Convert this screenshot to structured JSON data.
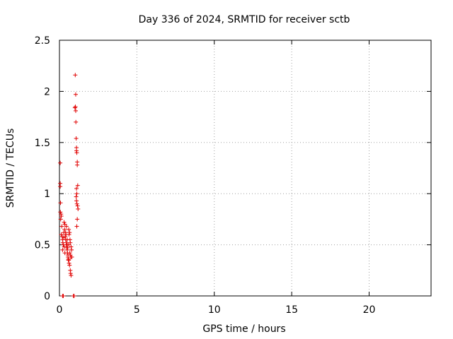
{
  "chart_data": {
    "type": "scatter",
    "title": "Day 336 of 2024, SRMTID for receiver sctb",
    "xlabel": "GPS time / hours",
    "ylabel": "SRMTID / TECUs",
    "xlim": [
      0,
      24
    ],
    "ylim": [
      0,
      2.5
    ],
    "x_ticks": [
      0,
      5,
      10,
      15,
      20
    ],
    "x_tick_labels": [
      "0",
      "5",
      "10",
      "15",
      "20"
    ],
    "y_ticks": [
      0,
      0.5,
      1,
      1.5,
      2,
      2.5
    ],
    "y_tick_labels": [
      "0",
      "0.5",
      "1",
      "1.5",
      "2",
      "2.5"
    ],
    "grid": true,
    "marker": "+",
    "series": [
      {
        "name": "SRMTID",
        "color": "#e00000",
        "x": [
          0.05,
          0.05,
          0.05,
          0.07,
          0.06,
          0.1,
          0.12,
          0.08,
          0.15,
          0.12,
          0.18,
          0.2,
          0.22,
          0.25,
          0.3,
          0.28,
          0.33,
          0.35,
          0.3,
          0.38,
          0.4,
          0.42,
          0.45,
          0.45,
          0.48,
          0.5,
          0.5,
          0.52,
          0.55,
          0.55,
          0.58,
          0.6,
          0.6,
          0.62,
          0.65,
          0.65,
          0.68,
          0.7,
          0.7,
          0.72,
          0.75,
          0.75,
          0.78,
          0.8,
          0.2,
          0.35,
          0.5,
          0.62,
          0.7,
          0.58,
          0.4,
          0.28,
          0.45,
          0.52,
          0.6,
          0.67,
          0.73,
          1.02,
          1.05,
          1.0,
          1.03,
          1.05,
          1.06,
          1.08,
          1.1,
          1.1,
          1.12,
          1.15,
          1.15,
          1.18,
          1.1,
          1.12,
          1.08,
          1.1,
          1.13,
          1.17,
          1.2,
          1.15,
          1.12,
          0.2,
          0.25,
          0.9,
          0.95
        ],
        "y": [
          1.3,
          1.1,
          1.07,
          0.91,
          0.82,
          0.8,
          0.78,
          0.75,
          0.68,
          0.6,
          0.58,
          0.55,
          0.52,
          0.5,
          0.48,
          0.62,
          0.65,
          0.7,
          0.72,
          0.58,
          0.55,
          0.6,
          0.68,
          0.52,
          0.47,
          0.5,
          0.45,
          0.42,
          0.4,
          0.38,
          0.35,
          0.5,
          0.35,
          0.32,
          0.3,
          0.62,
          0.55,
          0.52,
          0.25,
          0.22,
          0.2,
          0.48,
          0.45,
          0.38,
          0.45,
          0.42,
          0.55,
          0.6,
          0.4,
          0.36,
          0.62,
          0.57,
          0.5,
          0.47,
          0.65,
          0.42,
          0.38,
          2.16,
          1.97,
          1.84,
          1.85,
          1.81,
          1.7,
          1.54,
          1.45,
          1.42,
          1.4,
          1.31,
          1.28,
          1.08,
          1.05,
          1.0,
          0.97,
          0.93,
          0.9,
          0.88,
          0.85,
          0.75,
          0.68,
          0.0,
          0.0,
          0.0,
          0.0
        ]
      }
    ]
  }
}
